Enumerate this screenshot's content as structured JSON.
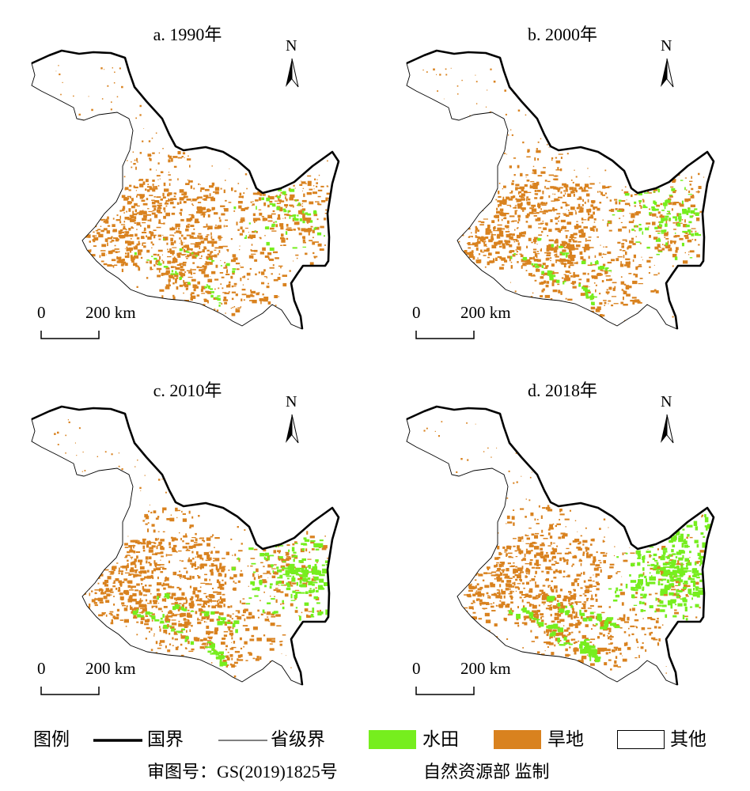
{
  "colors": {
    "paddy": "#76ee1e",
    "dryland": "#d9821f",
    "other": "#ffffff",
    "border": "#000000"
  },
  "panels": [
    {
      "id": "a",
      "title": "a. 1990年",
      "paddy_share": 0.25
    },
    {
      "id": "b",
      "title": "b. 2000年",
      "paddy_share": 0.45
    },
    {
      "id": "c",
      "title": "c. 2010年",
      "paddy_share": 0.7
    },
    {
      "id": "d",
      "title": "d. 2018年",
      "paddy_share": 1.0
    }
  ],
  "north_arrow": {
    "letter": "N"
  },
  "scale_bar": {
    "zero": "0",
    "distance": "200 km"
  },
  "legend": {
    "title": "图例",
    "items": [
      {
        "label": "国界",
        "symbol": "thick-line"
      },
      {
        "label": "省级界",
        "symbol": "thin-line"
      },
      {
        "label": "水田",
        "symbol": "swatch",
        "color": "#76ee1e"
      },
      {
        "label": "旱地",
        "symbol": "swatch",
        "color": "#d9821f"
      },
      {
        "label": "其他",
        "symbol": "swatch",
        "color": "#ffffff"
      }
    ]
  },
  "footer": {
    "map_review_number": "审图号：GS(2019)1825号",
    "supervisor": "自然资源部 监制"
  }
}
